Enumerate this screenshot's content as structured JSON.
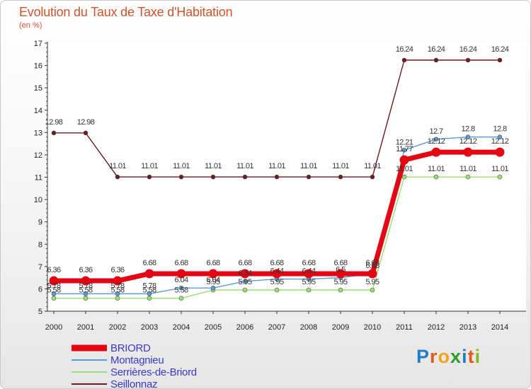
{
  "header": {
    "title": "Evolution du Taux de Taxe d'Habitation",
    "unit": "(en %)"
  },
  "logo": {
    "text": "Proxiti"
  },
  "chart_data": {
    "type": "line",
    "title": "Evolution du Taux de Taxe d'Habitation",
    "ylabel": "(en %)",
    "xlabel": "",
    "ylim": [
      5,
      17
    ],
    "yticks": [
      5,
      6,
      7,
      8,
      9,
      10,
      11,
      12,
      13,
      14,
      15,
      16,
      17
    ],
    "grid": false,
    "legend_position": "bottom-left",
    "x": [
      "2000",
      "2001",
      "2002",
      "2003",
      "2004",
      "2005",
      "2006",
      "2007",
      "2008",
      "2009",
      "2010",
      "2011",
      "2012",
      "2013",
      "2014"
    ],
    "series": [
      {
        "name": "BRIORD",
        "color": "#e30613",
        "values": [
          6.36,
          6.36,
          6.36,
          6.68,
          6.68,
          6.68,
          6.68,
          6.68,
          6.68,
          6.68,
          6.68,
          11.77,
          12.12,
          12.12,
          12.12
        ],
        "labels": [
          "6.36",
          "6.36",
          "6.36",
          "6.68",
          "6.68",
          "6.68",
          "6.68",
          "6.68",
          "6.68",
          "6.68",
          "6.68",
          "11.77",
          "12.12",
          "12.12",
          "12.12"
        ]
      },
      {
        "name": "Montagnieu",
        "color": "#5b9bd5",
        "values": [
          5.78,
          5.78,
          5.78,
          5.78,
          6.04,
          6.04,
          6.34,
          6.44,
          6.44,
          6.5,
          6.68,
          12.21,
          12.7,
          12.8,
          12.8
        ],
        "labels": [
          "5.78",
          "5.78",
          "5.78",
          "5.78",
          "6.04",
          "6.04",
          "6.34",
          "6.44",
          "6.44",
          "6.5",
          "6.68",
          "12.21",
          "12.7",
          "12.8",
          "12.8"
        ]
      },
      {
        "name": "Serrières-de-Briord",
        "color": "#9be070",
        "values": [
          5.58,
          5.58,
          5.58,
          5.58,
          5.58,
          5.95,
          5.95,
          5.95,
          5.95,
          5.95,
          5.95,
          11.01,
          11.01,
          11.01,
          11.01
        ],
        "labels": [
          "5.58",
          "5.58",
          "5.58",
          "5.58",
          "5.58",
          "5.95",
          "5.95",
          "5.95",
          "5.95",
          "5.95",
          "5.95",
          "11.01",
          "11.01",
          "11.01",
          "11.01"
        ]
      },
      {
        "name": "Seillonnaz",
        "color": "#6e1a1a",
        "values": [
          12.98,
          12.98,
          11.01,
          11.01,
          11.01,
          11.01,
          11.01,
          11.01,
          11.01,
          11.01,
          11.01,
          16.24,
          16.24,
          16.24,
          16.24
        ],
        "labels": [
          "12.98",
          "12.98",
          "11.01",
          "11.01",
          "11.01",
          "11.01",
          "11.01",
          "11.01",
          "11.01",
          "11.01",
          "11.01",
          "16.24",
          "16.24",
          "16.24",
          "16.24"
        ]
      }
    ]
  }
}
